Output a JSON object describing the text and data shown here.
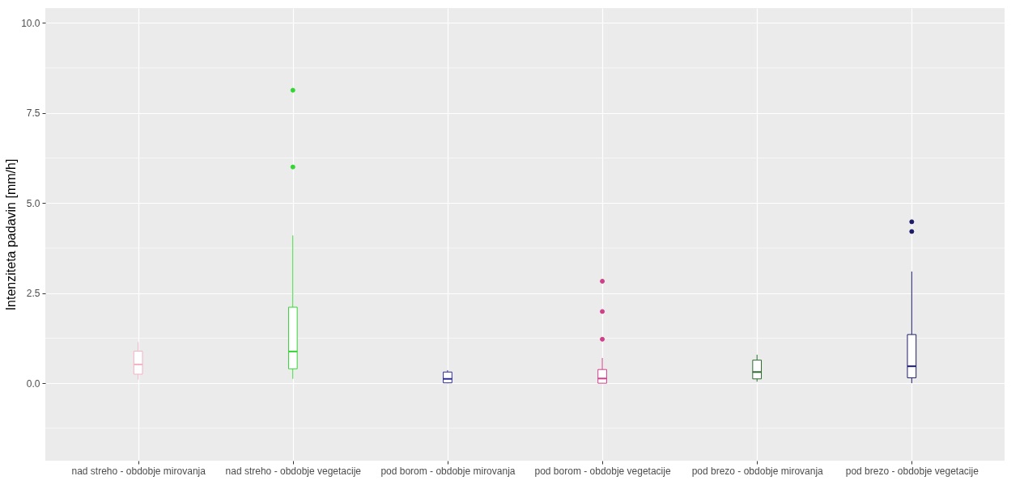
{
  "chart_data": {
    "type": "box",
    "ylabel": "Intenziteta padavin [mm/h]",
    "categories": [
      "nad streho - obdobje mirovanja",
      "nad streho - obdobje vegetacije",
      "pod borom - obdobje mirovanja",
      "pod borom - obdobje vegetacije",
      "pod brezo - obdobje mirovanja",
      "pod brezo - obdobje vegetacije"
    ],
    "ylim": [
      -2.15,
      10.41
    ],
    "yticks": [
      {
        "value": -1.25,
        "label": null
      },
      {
        "value": 0,
        "label": "0.0"
      },
      {
        "value": 1.25,
        "label": null
      },
      {
        "value": 2.5,
        "label": "2.5"
      },
      {
        "value": 3.75,
        "label": null
      },
      {
        "value": 5,
        "label": "5.0"
      },
      {
        "value": 6.25,
        "label": null
      },
      {
        "value": 7.5,
        "label": "7.5"
      },
      {
        "value": 8.75,
        "label": null
      },
      {
        "value": 10,
        "label": "10.0"
      }
    ],
    "grid": true,
    "colors": [
      "#f2b3c3",
      "#33d633",
      "#2e2e99",
      "#d0408a",
      "#2d6a2d",
      "#1c1c6b"
    ],
    "boxes": [
      {
        "low": 0.1,
        "q1": 0.25,
        "median": 0.52,
        "q3": 0.89,
        "high": 1.14
      },
      {
        "low": 0.12,
        "q1": 0.4,
        "median": 0.88,
        "q3": 2.11,
        "high": 4.1,
        "outliers": [
          6.0,
          8.13
        ]
      },
      {
        "low": 0.0,
        "q1": 0.01,
        "median": 0.12,
        "q3": 0.31,
        "high": 0.36
      },
      {
        "low": 0.0,
        "q1": 0.0,
        "median": 0.13,
        "q3": 0.38,
        "high": 0.7,
        "outliers": [
          1.22,
          1.99,
          2.83
        ]
      },
      {
        "low": 0.04,
        "q1": 0.12,
        "median": 0.31,
        "q3": 0.64,
        "high": 0.79
      },
      {
        "low": 0.0,
        "q1": 0.15,
        "median": 0.47,
        "q3": 1.35,
        "high": 3.1,
        "outliers": [
          4.21,
          4.48
        ]
      }
    ]
  }
}
